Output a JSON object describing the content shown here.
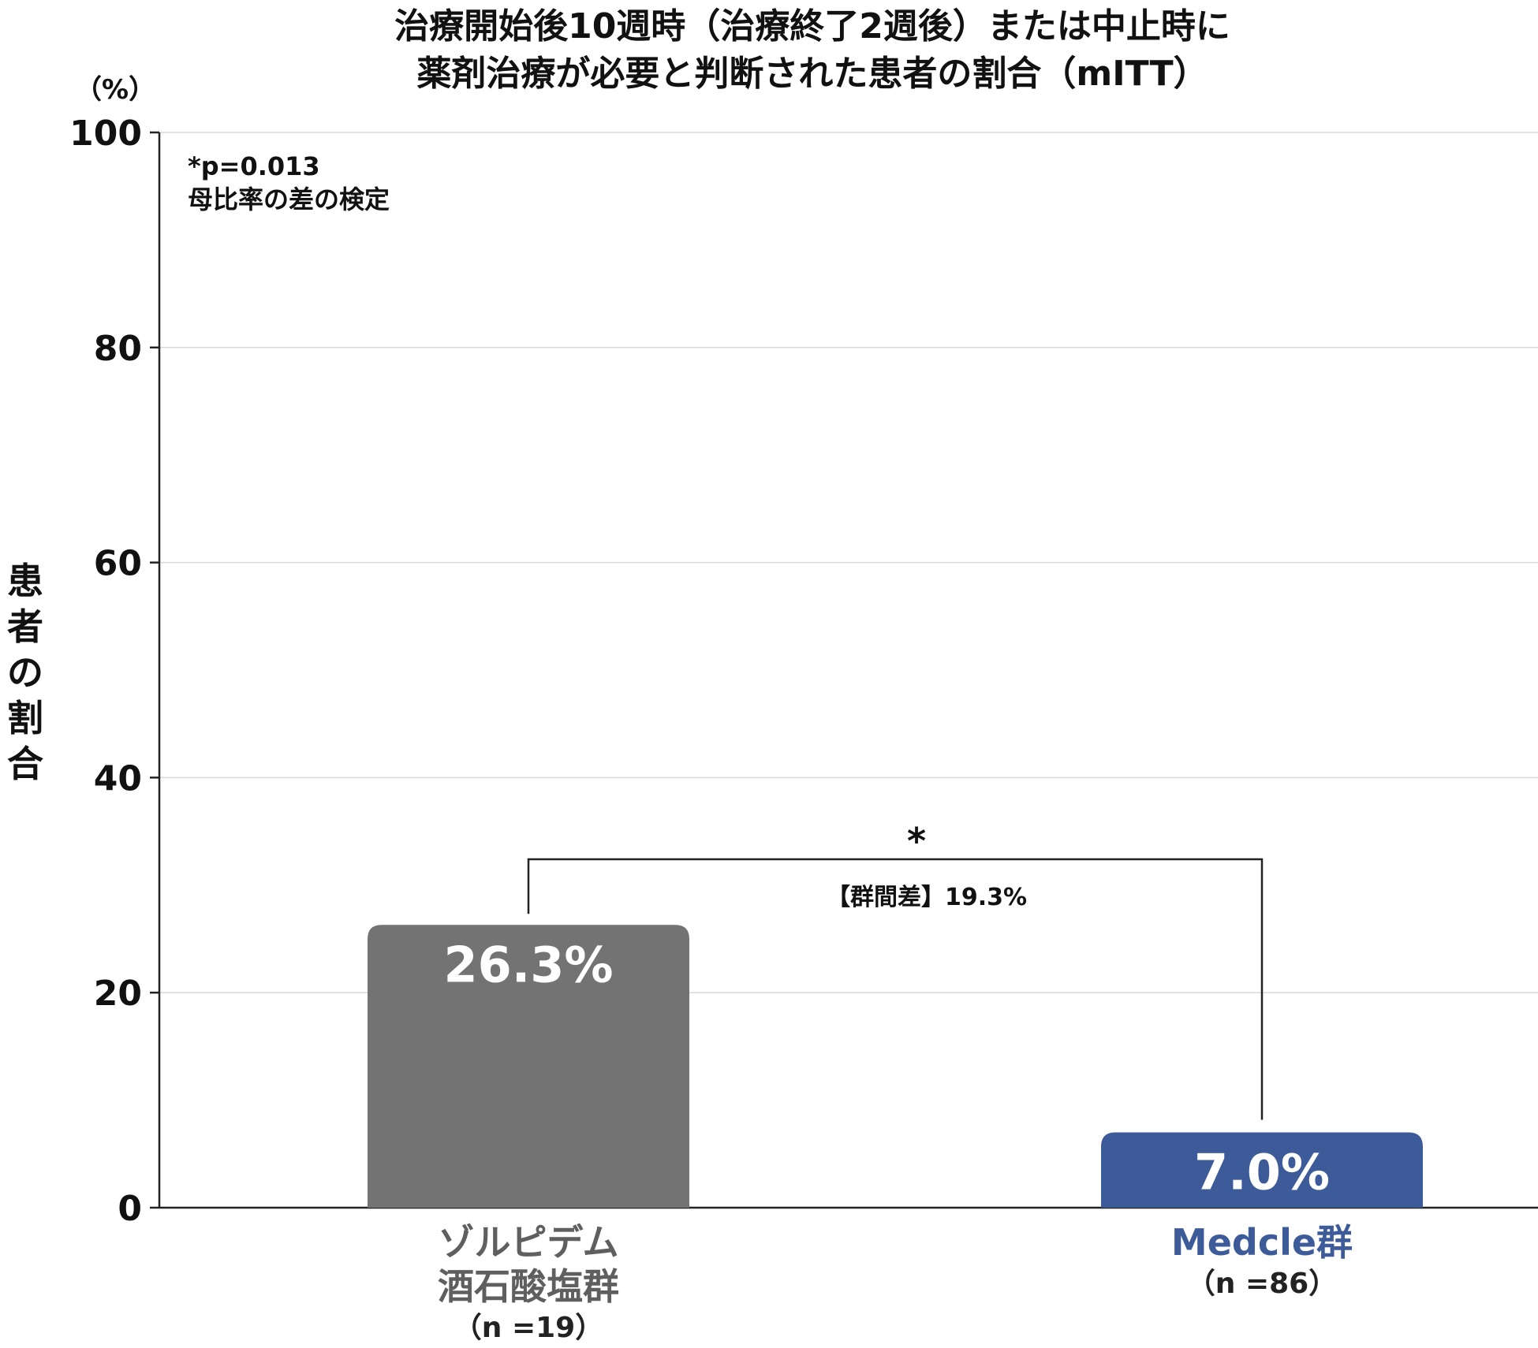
{
  "title_line1": "治療開始後10週時（治療終了2週後）または中止時に",
  "title_line2": "薬剤治療が必要と判断された患者の割合（mITT）",
  "y_unit": "（%）",
  "y_axis_label": "患者の割合",
  "note_line1": "*p=0.013",
  "note_line2": "母比率の差の検定",
  "significance_marker": "*",
  "group_difference": "【群間差】19.3%",
  "categories_display": [
    {
      "name_line1": "ゾルピデム",
      "name_line2": "酒石酸塩群",
      "n_label": "（n =19）",
      "value_label": "26.3%"
    },
    {
      "name_line1": "Medcle群",
      "name_line2": "",
      "n_label": "（n =86）",
      "value_label": "7.0%"
    }
  ],
  "colors": {
    "zolpidem_bar": "#737373",
    "medcle_bar": "#3d5b99",
    "zolpidem_text": "#5f5f5f",
    "medcle_text": "#3d5b99",
    "grid": "#d9d9d9",
    "axis": "#222222"
  },
  "chart_data": {
    "type": "bar",
    "categories": [
      "ゾルピデム酒石酸塩群",
      "Medcle群"
    ],
    "values": [
      26.3,
      7.0
    ],
    "title": "治療開始後10週時（治療終了2週後）または中止時に薬剤治療が必要と判断された患者の割合（mITT）",
    "xlabel": "",
    "ylabel": "患者の割合",
    "y_unit": "%",
    "ylim": [
      0,
      100
    ],
    "yticks": [
      0,
      20,
      40,
      60,
      80,
      100
    ],
    "grid": true,
    "annotations": [
      "*p=0.013",
      "母比率の差の検定",
      "【群間差】19.3%"
    ]
  }
}
